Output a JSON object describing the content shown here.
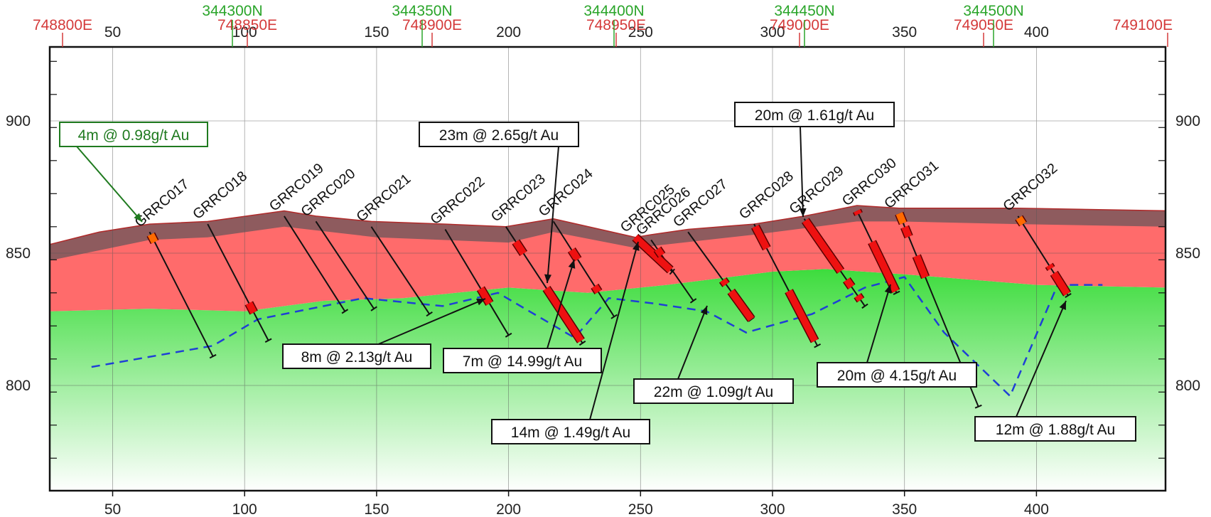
{
  "section": {
    "top_eastings": [
      "748800E",
      "748850E",
      "748900E",
      "748950E",
      "749000E",
      "749050E",
      "749100E"
    ],
    "top_northings": [
      "344300N",
      "344350N",
      "344400N",
      "344450N",
      "344500N"
    ],
    "x_ticks": [
      "50",
      "100",
      "150",
      "200",
      "250",
      "300",
      "350",
      "400"
    ],
    "y_ticks": [
      "900",
      "850",
      "800"
    ]
  },
  "colors": {
    "oxidised": "#8e5b5e",
    "mineralised": "#ff6b6b",
    "fresh_top": "#3ddc3d",
    "fresh_bottom": "#ffffff",
    "intercept": "#ee1111",
    "intercept_low": "#ff6a00",
    "dashed_line": "#1f3fd6",
    "easting": "#d43a3a",
    "northing": "#2aa52a"
  },
  "holes": [
    {
      "id": "GRRC017",
      "collar": [
        64,
        858
      ],
      "end": [
        88,
        811
      ]
    },
    {
      "id": "GRRC018",
      "collar": [
        86,
        861
      ],
      "end": [
        109,
        817
      ]
    },
    {
      "id": "GRRC019",
      "collar": [
        115,
        864
      ],
      "end": [
        138,
        828
      ]
    },
    {
      "id": "GRRC020",
      "collar": [
        127,
        862
      ],
      "end": [
        149,
        829
      ]
    },
    {
      "id": "GRRC021",
      "collar": [
        148,
        860
      ],
      "end": [
        170,
        827
      ]
    },
    {
      "id": "GRRC022",
      "collar": [
        176,
        859
      ],
      "end": [
        200,
        819
      ]
    },
    {
      "id": "GRRC023",
      "collar": [
        199,
        860
      ],
      "end": [
        228,
        816
      ]
    },
    {
      "id": "GRRC024",
      "collar": [
        217,
        862
      ],
      "end": [
        240,
        826
      ]
    },
    {
      "id": "GRRC025",
      "collar": [
        248,
        856
      ],
      "end": [
        262,
        843
      ]
    },
    {
      "id": "GRRC026",
      "collar": [
        254,
        855
      ],
      "end": [
        270,
        832
      ]
    },
    {
      "id": "GRRC027",
      "collar": [
        268,
        858
      ],
      "end": [
        292,
        825
      ]
    },
    {
      "id": "GRRC028",
      "collar": [
        293,
        861
      ],
      "end": [
        317,
        815
      ]
    },
    {
      "id": "GRRC029",
      "collar": [
        312,
        863
      ],
      "end": [
        335,
        830
      ]
    },
    {
      "id": "GRRC030",
      "collar": [
        332,
        866
      ],
      "end": [
        347,
        835
      ]
    },
    {
      "id": "GRRC031",
      "collar": [
        348,
        865
      ],
      "end": [
        378,
        792
      ]
    },
    {
      "id": "GRRC032",
      "collar": [
        393,
        864
      ],
      "end": [
        412,
        834
      ]
    }
  ],
  "intercepts": [
    {
      "hole": 0,
      "from": 0.02,
      "to": 0.08,
      "grade": "low"
    },
    {
      "hole": 1,
      "from": 0.68,
      "to": 0.76,
      "grade": "high"
    },
    {
      "hole": 5,
      "from": 0.56,
      "to": 0.7,
      "grade": "high"
    },
    {
      "hole": 6,
      "from": 0.13,
      "to": 0.23,
      "grade": "high"
    },
    {
      "hole": 6,
      "from": 0.53,
      "to": 0.98,
      "grade": "high"
    },
    {
      "hole": 7,
      "from": 0.3,
      "to": 0.4,
      "grade": "high"
    },
    {
      "hole": 7,
      "from": 0.68,
      "to": 0.74,
      "grade": "high"
    },
    {
      "hole": 8,
      "from": 0.0,
      "to": 0.95,
      "grade": "high"
    },
    {
      "hole": 9,
      "from": 0.15,
      "to": 0.25,
      "grade": "high"
    },
    {
      "hole": 10,
      "from": 0.55,
      "to": 0.6,
      "grade": "high"
    },
    {
      "hole": 10,
      "from": 0.68,
      "to": 0.99,
      "grade": "high"
    },
    {
      "hole": 10,
      "from": 0.99,
      "to": 1.0,
      "grade": "high"
    },
    {
      "hole": 11,
      "from": 0.02,
      "to": 0.2,
      "grade": "high"
    },
    {
      "hole": 11,
      "from": 0.55,
      "to": 0.96,
      "grade": "high"
    },
    {
      "hole": 12,
      "from": 0.02,
      "to": 0.6,
      "grade": "high"
    },
    {
      "hole": 12,
      "from": 0.7,
      "to": 0.78,
      "grade": "high"
    },
    {
      "hole": 12,
      "from": 0.88,
      "to": 0.93,
      "grade": "high"
    },
    {
      "hole": 13,
      "from": 0.0,
      "to": 0.04,
      "grade": "high"
    },
    {
      "hole": 13,
      "from": 0.38,
      "to": 0.98,
      "grade": "high"
    },
    {
      "hole": 14,
      "from": 0.0,
      "to": 0.05,
      "grade": "low"
    },
    {
      "hole": 14,
      "from": 0.07,
      "to": 0.12,
      "grade": "high"
    },
    {
      "hole": 14,
      "from": 0.22,
      "to": 0.33,
      "grade": "high"
    },
    {
      "hole": 15,
      "from": 0.02,
      "to": 0.1,
      "grade": "low"
    },
    {
      "hole": 15,
      "from": 0.62,
      "to": 0.66,
      "grade": "high"
    },
    {
      "hole": 15,
      "from": 0.72,
      "to": 0.98,
      "grade": "high"
    }
  ],
  "callouts": [
    {
      "text": "4m @ 0.98g/t Au",
      "green": true
    },
    {
      "text": "23m @ 2.65g/t Au",
      "green": false
    },
    {
      "text": "20m @ 1.61g/t Au",
      "green": false
    },
    {
      "text": "8m @ 2.13g/t Au",
      "green": false
    },
    {
      "text": "7m @ 14.99g/t Au",
      "green": false
    },
    {
      "text": "22m @ 1.09g/t Au",
      "green": false
    },
    {
      "text": "20m @ 4.15g/t Au",
      "green": false
    },
    {
      "text": "14m @ 1.49g/t Au",
      "green": false
    },
    {
      "text": "12m @ 1.88g/t Au",
      "green": false
    }
  ]
}
